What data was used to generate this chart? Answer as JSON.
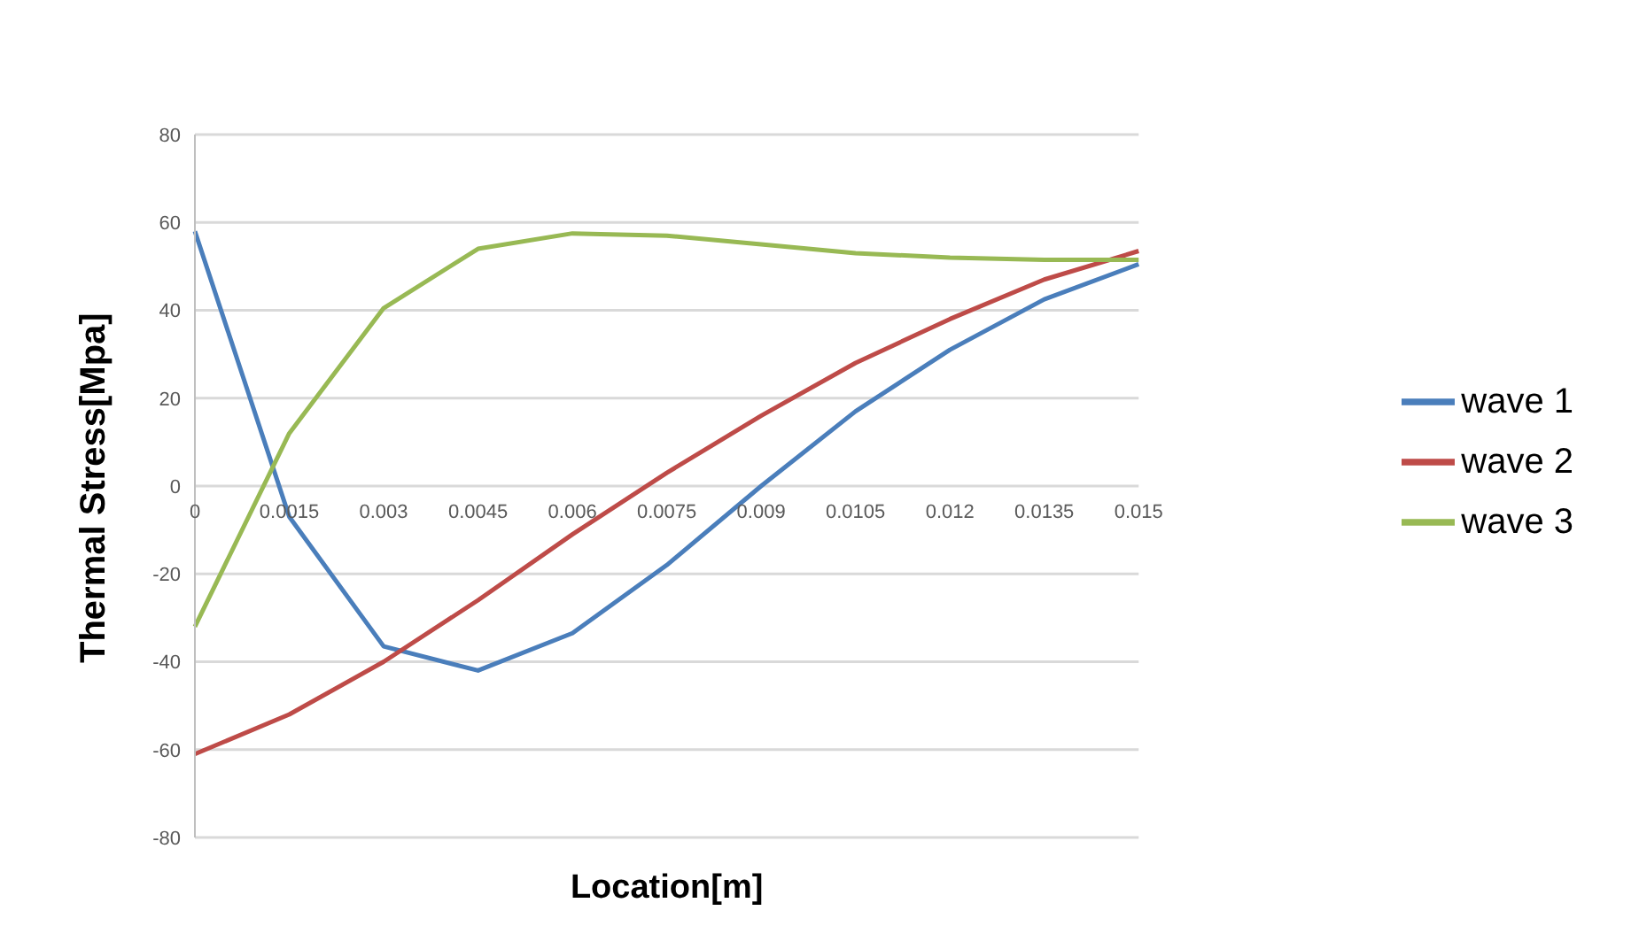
{
  "chart_data": {
    "type": "line",
    "xlabel": "Location[m]",
    "ylabel": "Thermal Stress[Mpa]",
    "categories": [
      "0",
      "0.0015",
      "0.003",
      "0.0045",
      "0.006",
      "0.0075",
      "0.009",
      "0.0105",
      "0.012",
      "0.0135",
      "0.015"
    ],
    "series": [
      {
        "name": "wave 1",
        "color": "#4a7ebb",
        "values": [
          58,
          -7,
          -36.5,
          -42,
          -33.5,
          -18,
          0,
          17,
          31,
          42.5,
          50.5
        ]
      },
      {
        "name": "wave 2",
        "color": "#be4b48",
        "values": [
          -61,
          -52,
          -40,
          -26,
          -11,
          3,
          16,
          28,
          38,
          47,
          53.5
        ]
      },
      {
        "name": "wave 3",
        "color": "#98b954",
        "values": [
          -32,
          12,
          40.5,
          54,
          57.5,
          57,
          55,
          53,
          52,
          51.5,
          51.5
        ]
      }
    ],
    "ylim": [
      -80,
      80
    ],
    "yticks": [
      -80,
      -60,
      -40,
      -20,
      0,
      20,
      40,
      60,
      80
    ],
    "grid": "y",
    "legend": "right",
    "marker": "none",
    "line_style": "solid"
  }
}
